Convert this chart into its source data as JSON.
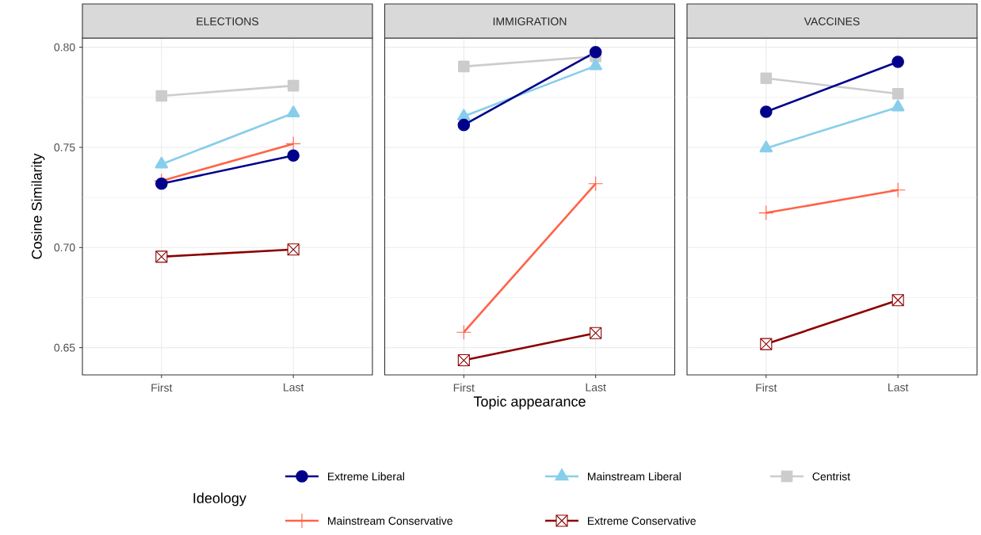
{
  "chart_data": [
    {
      "type": "line",
      "title": "ELECTIONS",
      "ylabel": "Cosine Similarity",
      "legend_title": "Ideology",
      "legend": "bottom",
      "categories": [
        "First",
        "Last"
      ],
      "ylim": [
        0.6364,
        0.8046
      ],
      "yticks": [
        0.65,
        {
          "value": 0.675,
          "label": null
        },
        {
          "value": 0.7,
          "label": "0.70"
        },
        {
          "value": 0.725,
          "label": null
        },
        0.75,
        {
          "value": 0.775,
          "label": null
        },
        {
          "value": 0.8,
          "label": "0.80"
        }
      ],
      "grid": true,
      "series": [
        {
          "name": "Extreme Liberal",
          "color": "#00008b",
          "marker": "circle",
          "values": [
            0.7319,
            0.7459
          ]
        },
        {
          "name": "Mainstream Liberal",
          "color": "#87ceeb",
          "marker": "triangle",
          "values": [
            0.7416,
            0.7671
          ]
        },
        {
          "name": "Centrist",
          "color": "#cccccc",
          "marker": "square",
          "values": [
            0.7757,
            0.7808
          ]
        },
        {
          "name": "Mainstream Conservative",
          "color": "#ff6347",
          "marker": "cross",
          "values": [
            0.7333,
            0.7518
          ]
        },
        {
          "name": "Extreme Conservative",
          "color": "#8b0000",
          "marker": "square-x",
          "values": [
            0.6954,
            0.699
          ]
        }
      ]
    },
    {
      "type": "line",
      "title": "IMMIGRATION",
      "xlabel": "Topic appearance",
      "categories": [
        "First",
        "Last"
      ],
      "ylim": [
        0.6364,
        0.8046
      ],
      "yticks": [
        0.65,
        {
          "value": 0.675,
          "label": null
        },
        0.7,
        {
          "value": 0.725,
          "label": null
        },
        0.75,
        {
          "value": 0.775,
          "label": null
        },
        0.8
      ],
      "grid": true,
      "tick_labels": "x",
      "series": [
        {
          "color": "#00008b",
          "marker": "circle",
          "values": [
            0.7612,
            0.7976
          ]
        },
        {
          "color": "#87ceeb",
          "marker": "triangle",
          "values": [
            0.7655,
            0.7907
          ]
        },
        {
          "color": "#cccccc",
          "marker": "square",
          "values": [
            0.7904,
            0.7954
          ]
        },
        {
          "color": "#ff6347",
          "marker": "cross",
          "values": [
            0.6577,
            0.7319
          ]
        },
        {
          "color": "#8b0000",
          "marker": "square-x",
          "values": [
            0.6437,
            0.6573
          ]
        }
      ]
    },
    {
      "type": "line",
      "title": "VACCINES",
      "categories": [
        "First",
        "Last"
      ],
      "ylim": [
        0.6364,
        0.8046
      ],
      "yticks": [
        0.65,
        {
          "value": 0.675,
          "label": null
        },
        0.7,
        {
          "value": 0.725,
          "label": null
        },
        0.75,
        {
          "value": 0.775,
          "label": null
        },
        0.8
      ],
      "grid": true,
      "tick_labels": "x",
      "series": [
        {
          "color": "#00008b",
          "marker": "circle",
          "values": [
            0.7678,
            0.7927
          ]
        },
        {
          "color": "#87ceeb",
          "marker": "triangle",
          "values": [
            0.7496,
            0.7701
          ]
        },
        {
          "color": "#cccccc",
          "marker": "square",
          "values": [
            0.7845,
            0.7768
          ]
        },
        {
          "color": "#ff6347",
          "marker": "cross",
          "values": [
            0.7173,
            0.7287
          ]
        },
        {
          "color": "#8b0000",
          "marker": "square-x",
          "values": [
            0.6518,
            0.6737
          ]
        }
      ]
    }
  ]
}
